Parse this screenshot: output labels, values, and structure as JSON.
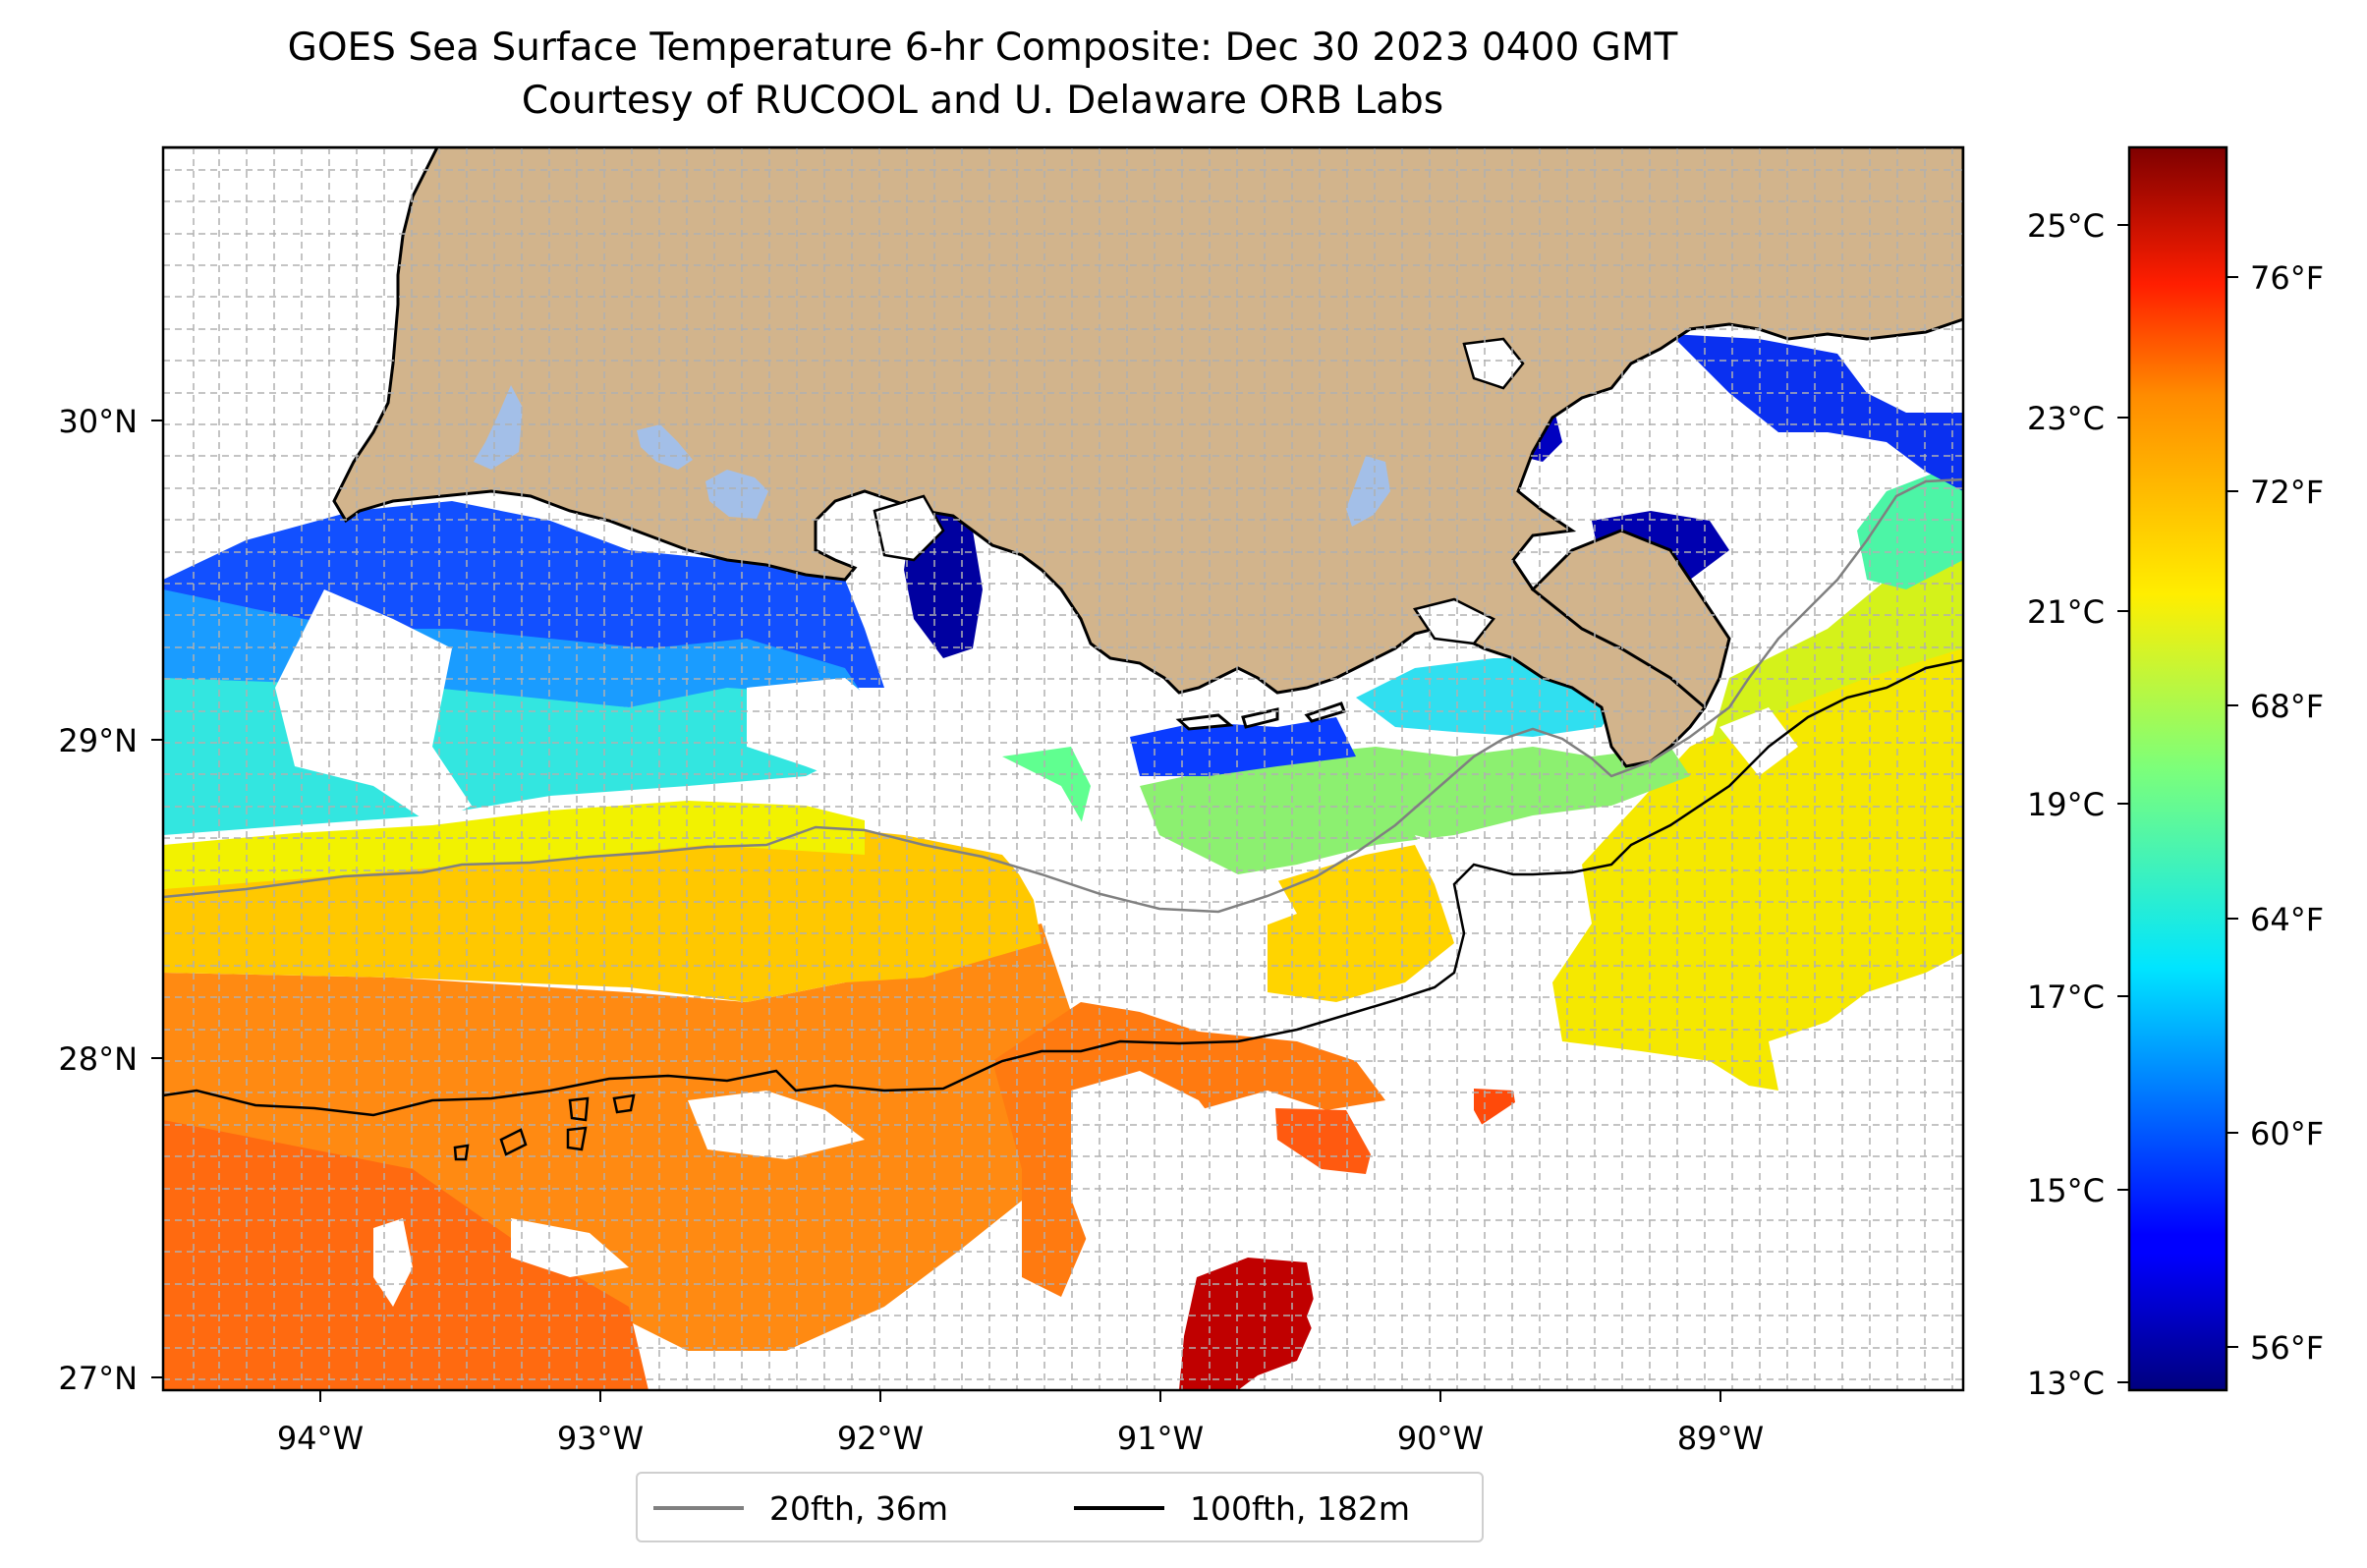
{
  "title": {
    "line1": "GOES Sea Surface Temperature 6-hr Composite: Dec 30 2023 0400 GMT",
    "line2": "Courtesy of RUCOOL and U. Delaware ORB Labs"
  },
  "map": {
    "lon_range": [
      -94.55,
      -88.25
    ],
    "lat_range": [
      26.93,
      30.85
    ],
    "lon_ticks": [
      "94°W",
      "93°W",
      "92°W",
      "91°W",
      "90°W",
      "89°W"
    ],
    "lat_ticks": [
      "30°N",
      "29°N",
      "28°N",
      "27°N"
    ],
    "land_color": "#d2b48c",
    "lake_color": "#a3bfe8",
    "gridlines": true
  },
  "colorbar": {
    "colormap": "jet",
    "celsius_ticks": [
      "25°C",
      "23°C",
      "21°C",
      "19°C",
      "17°C",
      "15°C",
      "13°C"
    ],
    "fahrenheit_ticks": [
      "76°F",
      "72°F",
      "68°F",
      "64°F",
      "60°F",
      "56°F"
    ]
  },
  "legend": {
    "items": [
      {
        "label": "20fth, 36m",
        "color": "#808080"
      },
      {
        "label": "100fth, 182m",
        "color": "#000000"
      }
    ]
  },
  "icons": {
    "isobath_20fth": "gray-line-icon",
    "isobath_100fth": "black-line-icon"
  }
}
